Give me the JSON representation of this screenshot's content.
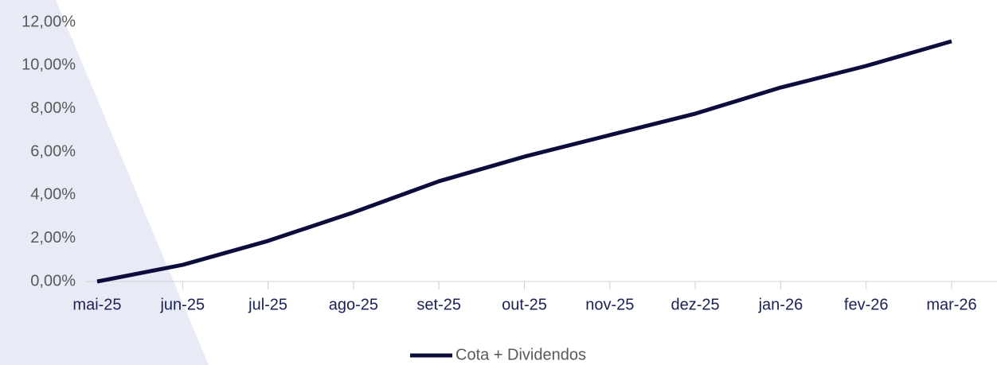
{
  "chart_data": {
    "type": "line",
    "categories": [
      "mai-25",
      "jun-25",
      "jul-25",
      "ago-25",
      "set-25",
      "out-25",
      "nov-25",
      "dez-25",
      "jan-26",
      "fev-26",
      "mar-26"
    ],
    "series": [
      {
        "name": "Cota + Dividendos",
        "color": "#0d0d3d",
        "values": [
          0,
          0.77,
          1.88,
          3.2,
          4.64,
          5.78,
          6.78,
          7.77,
          8.98,
          9.98,
          11.12
        ]
      }
    ],
    "ylim": [
      0,
      12
    ],
    "yticks": [
      {
        "value": 0,
        "label": "0,00%"
      },
      {
        "value": 2,
        "label": "2,00%"
      },
      {
        "value": 4,
        "label": "4,00%"
      },
      {
        "value": 6,
        "label": "6,00%"
      },
      {
        "value": 8,
        "label": "8,00%"
      },
      {
        "value": 10,
        "label": "10,00%"
      },
      {
        "value": 12,
        "label": "12,00%"
      }
    ],
    "legend": "bottom"
  }
}
